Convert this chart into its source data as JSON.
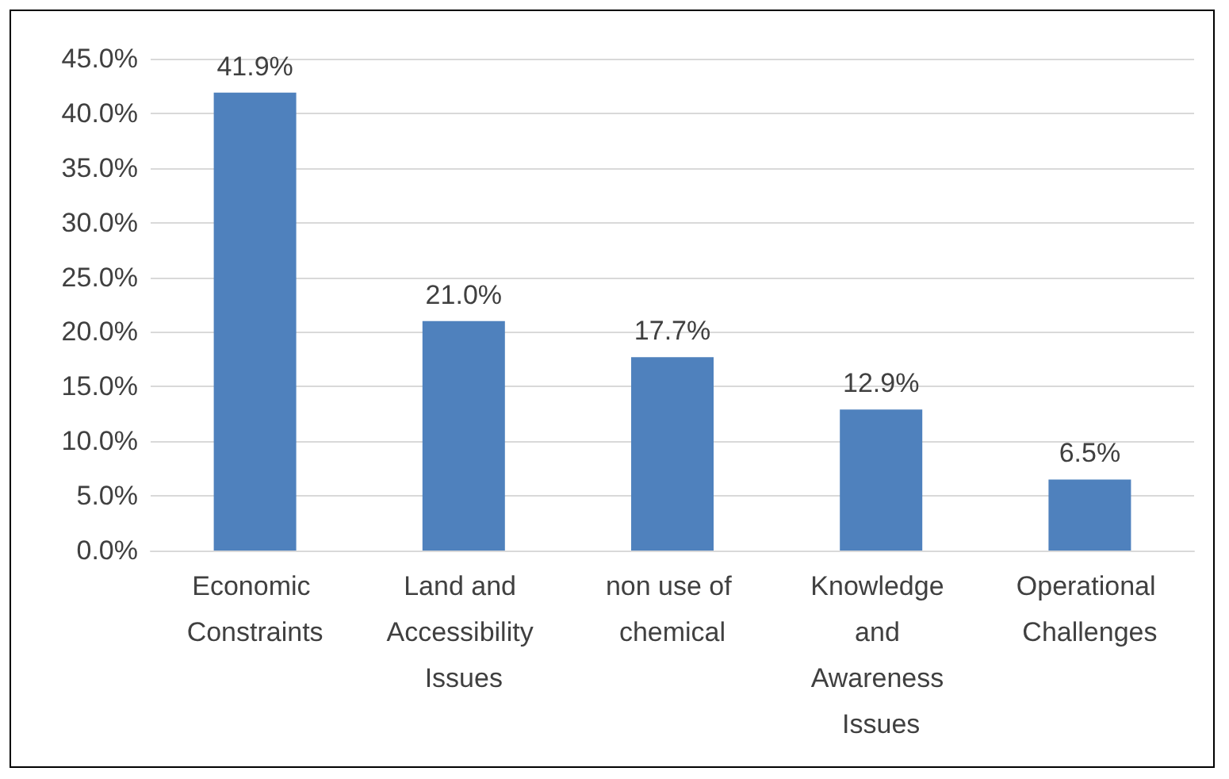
{
  "chart_data": {
    "type": "bar",
    "categories": [
      "Economic Constraints",
      "Land and Accessibility Issues",
      "non use of chemical",
      "Knowledge and Awareness Issues",
      "Operational Challenges"
    ],
    "values": [
      41.9,
      21.0,
      17.7,
      12.9,
      6.5
    ],
    "value_labels": [
      "41.9%",
      "21.0%",
      "17.7%",
      "12.9%",
      "6.5%"
    ],
    "color": "#4f81bd",
    "ylim": [
      0,
      45
    ],
    "yticks": [
      {
        "value": 0,
        "label": "0.0%"
      },
      {
        "value": 5,
        "label": "5.0%"
      },
      {
        "value": 10,
        "label": "10.0%"
      },
      {
        "value": 15,
        "label": "15.0%"
      },
      {
        "value": 20,
        "label": "20.0%"
      },
      {
        "value": 25,
        "label": "25.0%"
      },
      {
        "value": 30,
        "label": "30.0%"
      },
      {
        "value": 35,
        "label": "35.0%"
      },
      {
        "value": 40,
        "label": "40.0%"
      },
      {
        "value": 45,
        "label": "45.0%"
      }
    ],
    "grid": "y"
  }
}
